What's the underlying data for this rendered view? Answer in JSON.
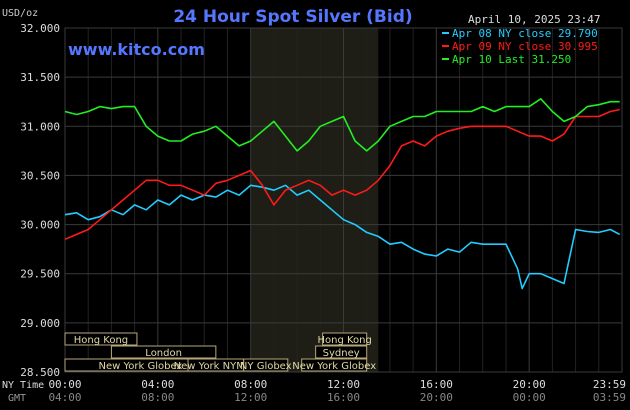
{
  "header": {
    "title": "24 Hour Spot Silver (Bid)",
    "unit_label": "USD/oz",
    "datetime": "April 10, 2025 23:47",
    "website": "www.kitco.com"
  },
  "legend": [
    {
      "label": "Apr 08 NY close 29.790",
      "color": "#22ccff"
    },
    {
      "label": "Apr 09 NY close 30.995",
      "color": "#ff1a1a"
    },
    {
      "label": "Apr 10 Last 31.250",
      "color": "#22ee22"
    }
  ],
  "markets": {
    "left": [
      {
        "label": "Hong Kong",
        "row": 0,
        "from": 0,
        "to": 3.1
      },
      {
        "label": "London",
        "row": 1,
        "from": 2.0,
        "to": 6.5
      },
      {
        "label": "New York Globex",
        "row": 2,
        "from": 0,
        "to": 6.5
      }
    ],
    "center": [
      {
        "label": "New York NYMEX",
        "row": 2,
        "from": 5.3,
        "to": 7.7
      },
      {
        "label": "NY Globex",
        "row": 2,
        "from": 7.7,
        "to": 9.6
      }
    ],
    "right": [
      {
        "label": "Hong Kong",
        "row": 0,
        "from": 11.1,
        "to": 13.0
      },
      {
        "label": "Sydney",
        "row": 1,
        "from": 10.8,
        "to": 13.0
      },
      {
        "label": "New York Globex",
        "row": 2,
        "from": 10.2,
        "to": 13.0
      }
    ]
  },
  "time_axis": {
    "row1_label": "NY Time",
    "row2_label": "GMT",
    "ny": [
      "00:00",
      "04:00",
      "08:00",
      "12:00",
      "16:00",
      "20:00",
      "23:59"
    ],
    "gmt": [
      "04:00",
      "08:00",
      "12:00",
      "16:00",
      "20:00",
      "00:00",
      "03:59"
    ]
  },
  "chart_data": {
    "type": "line",
    "title": "24 Hour Spot Silver (Bid)",
    "ylabel": "USD/oz",
    "ylim": [
      28.5,
      32.0
    ],
    "yticks": [
      "32.000",
      "31.500",
      "31.000",
      "30.500",
      "30.000",
      "29.500",
      "29.000",
      "28.500"
    ],
    "xlim": [
      0,
      24
    ],
    "xticks": [
      "00:00",
      "04:00",
      "08:00",
      "12:00",
      "16:00",
      "20:00",
      "23:59"
    ],
    "shaded_region": [
      8.0,
      13.5
    ],
    "grid": true,
    "series": [
      {
        "name": "Apr 08 NY close 29.790",
        "color": "#22ccff",
        "x": [
          0,
          0.5,
          1,
          1.5,
          2,
          2.5,
          3,
          3.5,
          4,
          4.5,
          5,
          5.5,
          6,
          6.5,
          7,
          7.5,
          8,
          8.5,
          9,
          9.5,
          10,
          10.5,
          11,
          11.5,
          12,
          12.5,
          13,
          13.5,
          14,
          14.5,
          15,
          15.5,
          16,
          16.5,
          17,
          17.5,
          18,
          18.5,
          19,
          19.5,
          19.7,
          20,
          20.5,
          21,
          21.5,
          22,
          22.5,
          23,
          23.5,
          23.9
        ],
        "y": [
          30.1,
          30.12,
          30.05,
          30.08,
          30.15,
          30.1,
          30.2,
          30.15,
          30.25,
          30.2,
          30.3,
          30.25,
          30.3,
          30.28,
          30.35,
          30.3,
          30.4,
          30.38,
          30.35,
          30.4,
          30.3,
          30.35,
          30.25,
          30.15,
          30.05,
          30.0,
          29.92,
          29.88,
          29.8,
          29.82,
          29.75,
          29.7,
          29.68,
          29.75,
          29.72,
          29.82,
          29.8,
          29.8,
          29.8,
          29.55,
          29.35,
          29.5,
          29.5,
          29.45,
          29.4,
          29.95,
          29.93,
          29.92,
          29.95,
          29.9
        ]
      },
      {
        "name": "Apr 09 NY close 30.995",
        "color": "#ff1a1a",
        "x": [
          0,
          0.5,
          1,
          1.5,
          2,
          2.5,
          3,
          3.5,
          4,
          4.5,
          5,
          5.5,
          6,
          6.5,
          7,
          7.5,
          8,
          8.5,
          9,
          9.5,
          10,
          10.5,
          11,
          11.5,
          12,
          12.5,
          13,
          13.5,
          14,
          14.5,
          15,
          15.5,
          16,
          16.5,
          17,
          17.5,
          18,
          18.5,
          19,
          19.5,
          20,
          20.5,
          21,
          21.5,
          22,
          22.5,
          23,
          23.5,
          23.9
        ],
        "y": [
          29.85,
          29.9,
          29.95,
          30.05,
          30.15,
          30.25,
          30.35,
          30.45,
          30.45,
          30.4,
          30.4,
          30.35,
          30.3,
          30.42,
          30.45,
          30.5,
          30.55,
          30.4,
          30.2,
          30.35,
          30.4,
          30.45,
          30.4,
          30.3,
          30.35,
          30.3,
          30.35,
          30.45,
          30.6,
          30.8,
          30.85,
          30.8,
          30.9,
          30.95,
          30.98,
          31.0,
          31.0,
          31.0,
          31.0,
          30.95,
          30.9,
          30.9,
          30.85,
          30.92,
          31.1,
          31.1,
          31.1,
          31.15,
          31.17
        ]
      },
      {
        "name": "Apr 10 Last 31.250",
        "color": "#22ee22",
        "x": [
          0,
          0.5,
          1,
          1.5,
          2,
          2.5,
          3,
          3.5,
          4,
          4.5,
          5,
          5.5,
          6,
          6.5,
          7,
          7.5,
          8,
          8.5,
          9,
          9.5,
          10,
          10.5,
          11,
          11.5,
          12,
          12.5,
          13,
          13.5,
          14,
          14.5,
          15,
          15.5,
          16,
          16.5,
          17,
          17.5,
          18,
          18.5,
          19,
          19.5,
          20,
          20.5,
          21,
          21.5,
          22,
          22.5,
          23,
          23.5,
          23.9
        ],
        "y": [
          31.15,
          31.12,
          31.15,
          31.2,
          31.18,
          31.2,
          31.2,
          31.0,
          30.9,
          30.85,
          30.85,
          30.92,
          30.95,
          31.0,
          30.9,
          30.8,
          30.85,
          30.95,
          31.05,
          30.9,
          30.75,
          30.85,
          31.0,
          31.05,
          31.1,
          30.85,
          30.75,
          30.85,
          31.0,
          31.05,
          31.1,
          31.1,
          31.15,
          31.15,
          31.15,
          31.15,
          31.2,
          31.15,
          31.2,
          31.2,
          31.2,
          31.28,
          31.15,
          31.05,
          31.1,
          31.2,
          31.22,
          31.25,
          31.25
        ]
      }
    ]
  }
}
